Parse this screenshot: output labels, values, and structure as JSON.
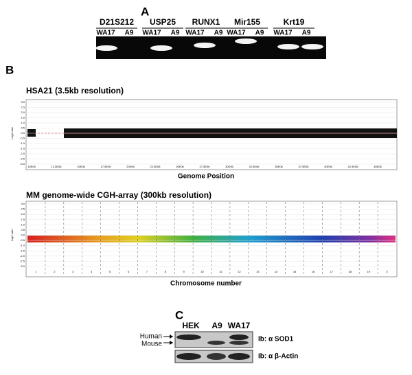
{
  "panel_a": {
    "letter": "A",
    "genes": [
      {
        "name": "D21S212",
        "lanes": [
          "WA17",
          "A9"
        ]
      },
      {
        "name": "USP25",
        "lanes": [
          "WA17",
          "A9"
        ]
      },
      {
        "name": "RUNX1",
        "lanes": [
          "WA17",
          "A9"
        ]
      },
      {
        "name": "Mir155",
        "lanes": [
          "WA17",
          "A9"
        ]
      },
      {
        "name": "Krt19",
        "lanes": [
          "WA17",
          "A9"
        ]
      }
    ]
  },
  "panel_b": {
    "letter": "B",
    "plot1": {
      "title": "HSA21 (3.5kb resolution)",
      "y_label": "Log2 ratio",
      "x_label": "Genome Position",
      "yticks": [
        "3.0",
        "2.5",
        "2.0",
        "1.5",
        "1.0",
        "0.5",
        "0.0",
        "-0.5",
        "-1.0",
        "-1.5",
        "-2.0",
        "-2.5",
        "-3.0"
      ],
      "xticks": [
        "10E06",
        "12.5E06",
        "15E06",
        "17.5E06",
        "20E06",
        "22.5E06",
        "25E06",
        "27.5E06",
        "30E06",
        "32.5E06",
        "35E06",
        "37.5E06",
        "40E06",
        "42.5E06",
        "45E06"
      ]
    },
    "plot2": {
      "title": "MM genome-wide CGH-array (300kb resolution)",
      "y_label": "Log2 ratio",
      "x_label": "Chromosome number",
      "yticks": [
        "3.0",
        "2.5",
        "2.0",
        "1.5",
        "1.0",
        "0.5",
        "0.0",
        "-0.5",
        "-1.0",
        "-1.5",
        "-2.0",
        "-2.5",
        "-3.0"
      ],
      "chromosomes": [
        "1",
        "2",
        "3",
        "4",
        "5",
        "6",
        "7",
        "8",
        "9",
        "10",
        "11",
        "12",
        "13",
        "14",
        "15",
        "16",
        "17",
        "18",
        "19",
        "X"
      ]
    }
  },
  "panel_c": {
    "letter": "C",
    "lanes": [
      "HEK",
      "A9",
      "WA17"
    ],
    "arrows": [
      "Human",
      "Mouse"
    ],
    "blots": [
      "Ib: α SOD1",
      "Ib: α β-Actin"
    ]
  }
}
